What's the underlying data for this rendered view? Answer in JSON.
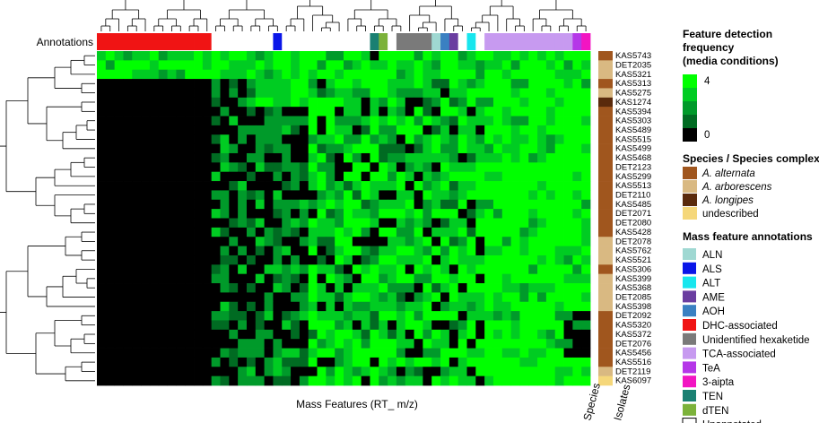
{
  "chart_data": {
    "type": "heatmap",
    "annotations_label": "Annotations",
    "xlabel": "Mass Features (RT_ m/z)",
    "species_label": "Species",
    "isolates_label": "Isolates",
    "rows": [
      "KAS5743",
      "DET2035",
      "KAS5321",
      "KAS5313",
      "KAS5275",
      "KAS1274",
      "KAS5394",
      "KAS5303",
      "KAS5489",
      "KAS5515",
      "KAS5499",
      "KAS5468",
      "DET2123",
      "KAS5299",
      "KAS5513",
      "DET2110",
      "KAS5485",
      "DET2071",
      "DET2080",
      "KAS5428",
      "DET2078",
      "KAS5762",
      "KAS5521",
      "KAS5306",
      "KAS5399",
      "KAS5368",
      "DET2085",
      "KAS5398",
      "DET2092",
      "KAS5320",
      "KAS5372",
      "DET2076",
      "KAS5456",
      "KAS5516",
      "DET2119",
      "KAS6097"
    ],
    "row_species": [
      "alt",
      "arb",
      "arb",
      "alt",
      "arb",
      "lon",
      "alt",
      "alt",
      "alt",
      "alt",
      "alt",
      "alt",
      "alt",
      "alt",
      "alt",
      "alt",
      "alt",
      "alt",
      "alt",
      "alt",
      "arb",
      "arb",
      "arb",
      "alt",
      "arb",
      "arb",
      "arb",
      "arb",
      "alt",
      "alt",
      "alt",
      "alt",
      "alt",
      "alt",
      "arb",
      "und"
    ],
    "n_columns": 56,
    "column_annotations": [
      "DHC",
      "DHC",
      "DHC",
      "DHC",
      "DHC",
      "DHC",
      "DHC",
      "DHC",
      "DHC",
      "DHC",
      "DHC",
      "DHC",
      "DHC",
      "UN",
      "UN",
      "UN",
      "UN",
      "UN",
      "UN",
      "UN",
      "ALS",
      "UN",
      "UN",
      "UN",
      "UN",
      "UN",
      "UN",
      "UN",
      "UN",
      "UN",
      "UN",
      "TEN",
      "dTEN",
      "UN",
      "HEX",
      "HEX",
      "HEX",
      "HEX",
      "ALN",
      "AOH",
      "AME",
      "UN",
      "ALT",
      "UN",
      "TCA",
      "TCA",
      "TCA",
      "TCA",
      "TCA",
      "TCA",
      "TCA",
      "TCA",
      "TCA",
      "TCA",
      "TeA",
      "3AI"
    ],
    "heatmap_sketch": "Black block in lower-left (rows 4-36, first ~13 columns); variable dark-green/black middle band; bright green right region with some black cells near bottom right.",
    "legend": {
      "freq_title_lines": [
        "Feature detection",
        "frequency",
        "(media conditions)"
      ],
      "freq_scale": [
        {
          "value": 4,
          "label": "4",
          "color": "#00ff00"
        },
        {
          "value": 3,
          "label": "",
          "color": "#00cc22"
        },
        {
          "value": 2,
          "label": "",
          "color": "#009a2a"
        },
        {
          "value": 1,
          "label": "",
          "color": "#006b22"
        },
        {
          "value": 0,
          "label": "0",
          "color": "#000000"
        }
      ],
      "species_title": "Species / Species complex",
      "species": [
        {
          "key": "alt",
          "label": "A. alternata",
          "color": "#a0561e",
          "italic": true
        },
        {
          "key": "arb",
          "label": "A. arborescens",
          "color": "#d9b982",
          "italic": true
        },
        {
          "key": "lon",
          "label": "A. longipes",
          "color": "#5a2a0c",
          "italic": true
        },
        {
          "key": "und",
          "label": "undescribed",
          "color": "#f5d77a",
          "italic": false
        }
      ],
      "annot_title": "Mass feature annotations",
      "annotations": [
        {
          "key": "ALN",
          "label": "ALN",
          "color": "#9fd8d2"
        },
        {
          "key": "ALS",
          "label": "ALS",
          "color": "#0a16e8"
        },
        {
          "key": "ALT",
          "label": "ALT",
          "color": "#18e6ee"
        },
        {
          "key": "AME",
          "label": "AME",
          "color": "#6a3da0"
        },
        {
          "key": "AOH",
          "label": "AOH",
          "color": "#3a80c2"
        },
        {
          "key": "DHC",
          "label": "DHC-associated",
          "color": "#f01414"
        },
        {
          "key": "HEX",
          "label": "Unidentified hexaketide",
          "color": "#7a7a7a"
        },
        {
          "key": "TCA",
          "label": "TCA-associated",
          "color": "#c79af0"
        },
        {
          "key": "TeA",
          "label": "TeA",
          "color": "#b537e8"
        },
        {
          "key": "3AI",
          "label": "3-aipta",
          "color": "#f215c2"
        },
        {
          "key": "TEN",
          "label": "TEN",
          "color": "#1a8072"
        },
        {
          "key": "dTEN",
          "label": "dTEN",
          "color": "#7cb23a"
        },
        {
          "key": "UN",
          "label": "Unannotated",
          "color": "#ffffff"
        }
      ]
    }
  }
}
